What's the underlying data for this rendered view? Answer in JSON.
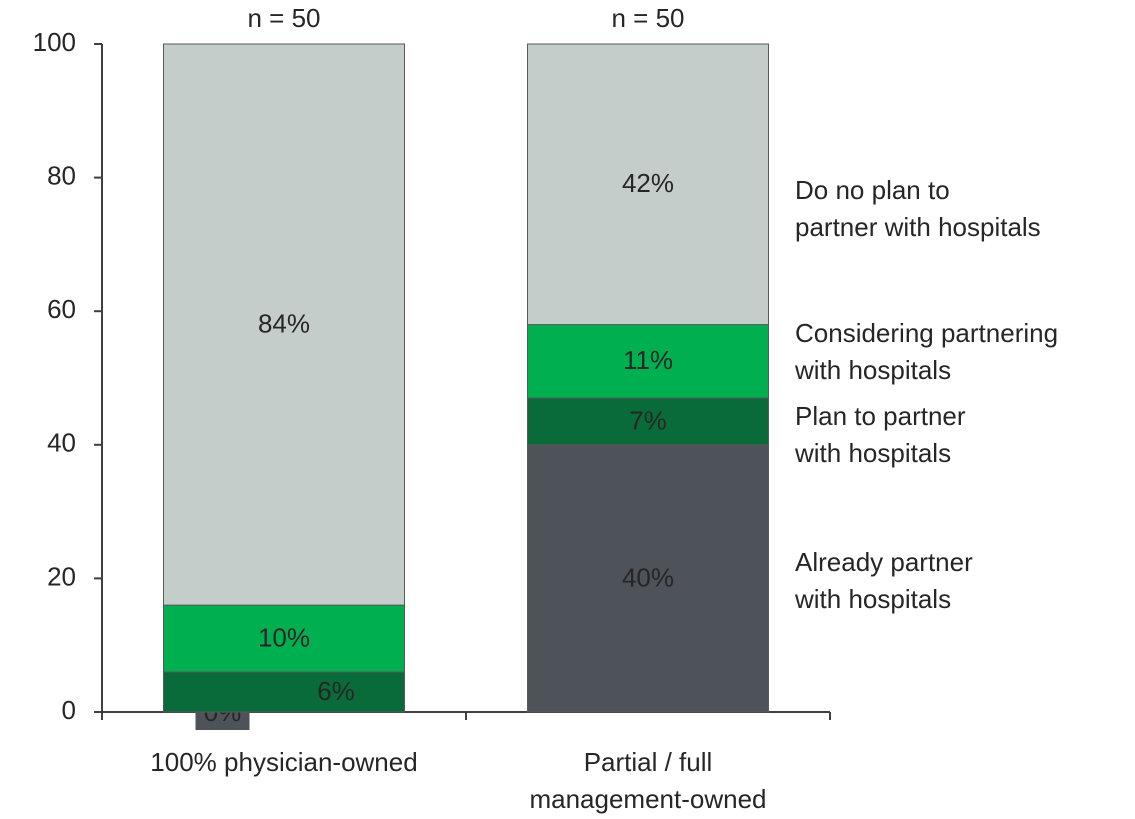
{
  "chart_data": {
    "type": "stacked_bar",
    "categories": [
      "100% physician-owned",
      "Partial / full\nmanagement-owned"
    ],
    "annotations": [
      "n = 50",
      "n = 50"
    ],
    "series": [
      {
        "name": "Already partner\nwith hospitals",
        "color": "#4d5359",
        "values": [
          0,
          40
        ],
        "value_labels": [
          "0%",
          "40%"
        ]
      },
      {
        "name": "Plan to partner\nwith hospitals",
        "color": "#0a6b3a",
        "values": [
          6,
          7
        ],
        "value_labels": [
          "6%",
          "7%"
        ]
      },
      {
        "name": "Considering partnering\nwith hospitals",
        "color": "#00b050",
        "values": [
          10,
          11
        ],
        "value_labels": [
          "10%",
          "11%"
        ]
      },
      {
        "name": "Do no plan to\npartner with hospitals",
        "color": "#c5cdcb",
        "values": [
          84,
          42
        ],
        "value_labels": [
          "84%",
          "42%"
        ]
      }
    ],
    "ylim": [
      0,
      100
    ],
    "yticks": [
      0,
      20,
      40,
      60,
      80,
      100
    ],
    "legend": "right"
  }
}
